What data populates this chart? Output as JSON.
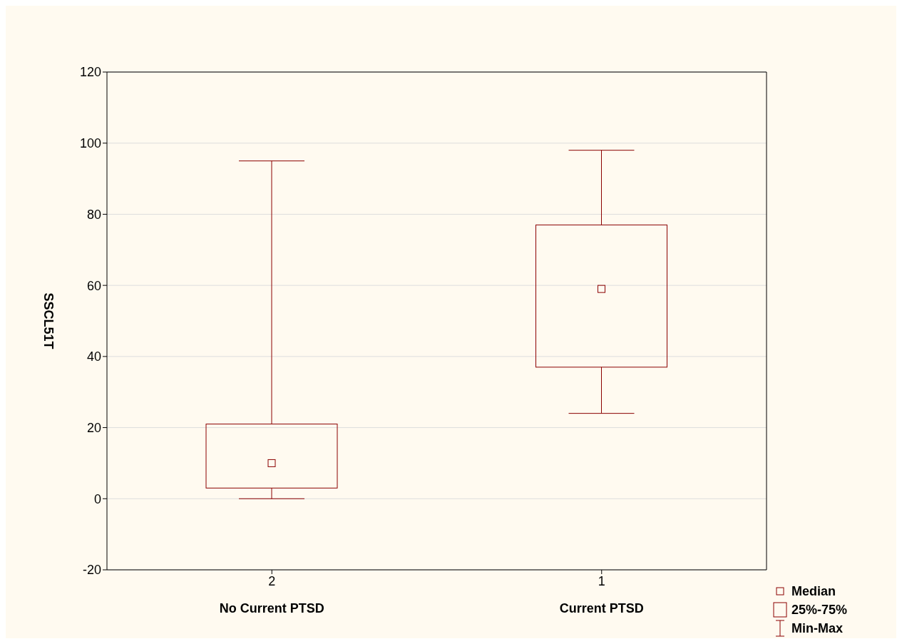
{
  "chart_data": {
    "type": "box",
    "ylabel": "SSCL51T",
    "categories": [
      "2\nNo Current PTSD",
      "1\nCurrent PTSD"
    ],
    "color": "#8b0000",
    "boxes": [
      {
        "low": 0,
        "q1": 3,
        "median": 10,
        "q3": 21,
        "high": 95
      },
      {
        "low": 24,
        "q1": 37,
        "median": 59,
        "q3": 77,
        "high": 98
      }
    ],
    "ylim": [
      -20,
      120
    ],
    "yticks": [
      -20,
      0,
      20,
      40,
      60,
      80,
      100,
      120
    ],
    "grid": "y",
    "annotations": [
      "Median",
      "25%-75%",
      "Min-Max"
    ]
  }
}
